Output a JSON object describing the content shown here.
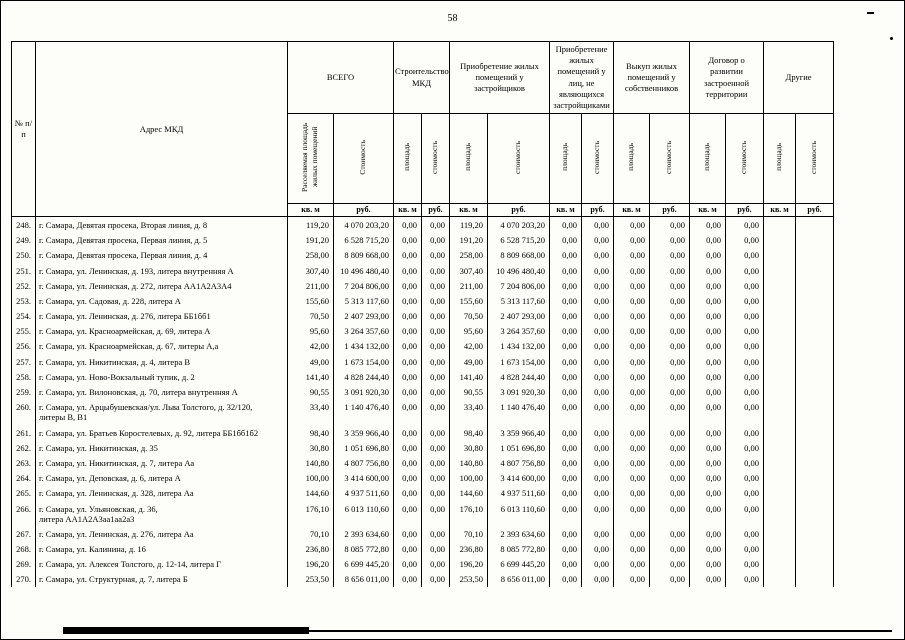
{
  "page": {
    "number": "58"
  },
  "table": {
    "headers": {
      "num": "№ п/п",
      "address": "Адрес МКД",
      "groups": [
        {
          "label": "ВСЕГО",
          "sub": [
            "Расселяемая площадь жилых помещений",
            "Стоимость"
          ]
        },
        {
          "label": "Строительство МКД",
          "sub": [
            "площадь",
            "стоимость"
          ]
        },
        {
          "label": "Приобретение жилых помещений у застройщиков",
          "sub": [
            "площадь",
            "стоимость"
          ]
        },
        {
          "label": "Приобретение жилых помещений у лиц, не являющихся застройщиками",
          "sub": [
            "площадь",
            "стоимость"
          ]
        },
        {
          "label": "Выкуп жилых помещений у собственников",
          "sub": [
            "площадь",
            "стоимость"
          ]
        },
        {
          "label": "Договор о развитии застроенной территории",
          "sub": [
            "площадь",
            "стоимость"
          ]
        },
        {
          "label": "Другие",
          "sub": [
            "площадь",
            "стоимость"
          ]
        }
      ],
      "units": {
        "area": "кв. м",
        "cost": "руб."
      }
    },
    "rows": [
      {
        "num": "248.",
        "address": "г. Самара, Девятая просека, Вторая линия, д. 8",
        "values": [
          "119,20",
          "4 070 203,20",
          "0,00",
          "0,00",
          "119,20",
          "4 070 203,20",
          "0,00",
          "0,00",
          "0,00",
          "0,00",
          "0,00",
          "0,00",
          "",
          ""
        ]
      },
      {
        "num": "249.",
        "address": "г. Самара, Девятая просека, Первая линия, д. 5",
        "values": [
          "191,20",
          "6 528 715,20",
          "0,00",
          "0,00",
          "191,20",
          "6 528 715,20",
          "0,00",
          "0,00",
          "0,00",
          "0,00",
          "0,00",
          "0,00",
          "",
          ""
        ]
      },
      {
        "num": "250.",
        "address": "г. Самара, Девятая просека, Первая линия, д. 4",
        "values": [
          "258,00",
          "8 809 668,00",
          "0,00",
          "0,00",
          "258,00",
          "8 809 668,00",
          "0,00",
          "0,00",
          "0,00",
          "0,00",
          "0,00",
          "0,00",
          "",
          ""
        ]
      },
      {
        "num": "251.",
        "address": "г. Самара, ул. Ленинская, д. 193, литера внутренняя А",
        "values": [
          "307,40",
          "10 496 480,40",
          "0,00",
          "0,00",
          "307,40",
          "10 496 480,40",
          "0,00",
          "0,00",
          "0,00",
          "0,00",
          "0,00",
          "0,00",
          "",
          ""
        ]
      },
      {
        "num": "252.",
        "address": "г. Самара, ул. Ленинская, д. 272, литера АА1А2А3А4",
        "values": [
          "211,00",
          "7 204 806,00",
          "0,00",
          "0,00",
          "211,00",
          "7 204 806,00",
          "0,00",
          "0,00",
          "0,00",
          "0,00",
          "0,00",
          "0,00",
          "",
          ""
        ]
      },
      {
        "num": "253.",
        "address": "г. Самара, ул. Садовая, д. 228, литера А",
        "values": [
          "155,60",
          "5 313 117,60",
          "0,00",
          "0,00",
          "155,60",
          "5 313 117,60",
          "0,00",
          "0,00",
          "0,00",
          "0,00",
          "0,00",
          "0,00",
          "",
          ""
        ]
      },
      {
        "num": "254.",
        "address": "г. Самара, ул. Ленинская, д. 276, литера ББ1бб1",
        "values": [
          "70,50",
          "2 407 293,00",
          "0,00",
          "0,00",
          "70,50",
          "2 407 293,00",
          "0,00",
          "0,00",
          "0,00",
          "0,00",
          "0,00",
          "0,00",
          "",
          ""
        ]
      },
      {
        "num": "255.",
        "address": "г. Самара, ул. Красноармейская, д. 69, литера А",
        "values": [
          "95,60",
          "3 264 357,60",
          "0,00",
          "0,00",
          "95,60",
          "3 264 357,60",
          "0,00",
          "0,00",
          "0,00",
          "0,00",
          "0,00",
          "0,00",
          "",
          ""
        ]
      },
      {
        "num": "256.",
        "address": "г. Самара, ул. Красноармейская, д. 67, литеры А,а",
        "values": [
          "42,00",
          "1 434 132,00",
          "0,00",
          "0,00",
          "42,00",
          "1 434 132,00",
          "0,00",
          "0,00",
          "0,00",
          "0,00",
          "0,00",
          "0,00",
          "",
          ""
        ]
      },
      {
        "num": "257.",
        "address": "г. Самара, ул. Никитинская, д. 4, литера В",
        "values": [
          "49,00",
          "1 673 154,00",
          "0,00",
          "0,00",
          "49,00",
          "1 673 154,00",
          "0,00",
          "0,00",
          "0,00",
          "0,00",
          "0,00",
          "0,00",
          "",
          ""
        ]
      },
      {
        "num": "258.",
        "address": "г. Самара, ул. Ново-Вокзальный тупик, д. 2",
        "values": [
          "141,40",
          "4 828 244,40",
          "0,00",
          "0,00",
          "141,40",
          "4 828 244,40",
          "0,00",
          "0,00",
          "0,00",
          "0,00",
          "0,00",
          "0,00",
          "",
          ""
        ]
      },
      {
        "num": "259.",
        "address": "г. Самара, ул. Вилоновская, д. 70, литера внутренняя А",
        "values": [
          "90,55",
          "3 091 920,30",
          "0,00",
          "0,00",
          "90,55",
          "3 091 920,30",
          "0,00",
          "0,00",
          "0,00",
          "0,00",
          "0,00",
          "0,00",
          "",
          ""
        ]
      },
      {
        "num": "260.",
        "address": "г. Самара, ул. Арцыбушевская/ул. Льва Толстого, д. 32/120,\nлитеры В, В1",
        "values": [
          "33,40",
          "1 140 476,40",
          "0,00",
          "0,00",
          "33,40",
          "1 140 476,40",
          "0,00",
          "0,00",
          "0,00",
          "0,00",
          "0,00",
          "0,00",
          "",
          ""
        ]
      },
      {
        "num": "261.",
        "address": "г. Самара, ул. Братьев Коростелевых, д. 92, литера ББ1бб1б2",
        "values": [
          "98,40",
          "3 359 966,40",
          "0,00",
          "0,00",
          "98,40",
          "3 359 966,40",
          "0,00",
          "0,00",
          "0,00",
          "0,00",
          "0,00",
          "0,00",
          "",
          ""
        ]
      },
      {
        "num": "262.",
        "address": "г. Самара, ул. Никитинская, д. 35",
        "values": [
          "30,80",
          "1 051 696,80",
          "0,00",
          "0,00",
          "30,80",
          "1 051 696,80",
          "0,00",
          "0,00",
          "0,00",
          "0,00",
          "0,00",
          "0,00",
          "",
          ""
        ]
      },
      {
        "num": "263.",
        "address": "г. Самара, ул. Никитинская, д. 7, литера Аа",
        "values": [
          "140,80",
          "4 807 756,80",
          "0,00",
          "0,00",
          "140,80",
          "4 807 756,80",
          "0,00",
          "0,00",
          "0,00",
          "0,00",
          "0,00",
          "0,00",
          "",
          ""
        ]
      },
      {
        "num": "264.",
        "address": "г. Самара, ул. Деповская, д. 6, литера А",
        "values": [
          "100,00",
          "3 414 600,00",
          "0,00",
          "0,00",
          "100,00",
          "3 414 600,00",
          "0,00",
          "0,00",
          "0,00",
          "0,00",
          "0,00",
          "0,00",
          "",
          ""
        ]
      },
      {
        "num": "265.",
        "address": "г. Самара, ул. Ленинская, д. 328, литера Аа",
        "values": [
          "144,60",
          "4 937 511,60",
          "0,00",
          "0,00",
          "144,60",
          "4 937 511,60",
          "0,00",
          "0,00",
          "0,00",
          "0,00",
          "0,00",
          "0,00",
          "",
          ""
        ]
      },
      {
        "num": "266.",
        "address": "г. Самара, ул. Ульяновская, д. 36,\nлитера АА1А2А3аа1аа2а3",
        "values": [
          "176,10",
          "6 013 110,60",
          "0,00",
          "0,00",
          "176,10",
          "6 013 110,60",
          "0,00",
          "0,00",
          "0,00",
          "0,00",
          "0,00",
          "0,00",
          "",
          ""
        ]
      },
      {
        "num": "267.",
        "address": "г. Самара, ул. Ленинская, д. 276, литера Аа",
        "values": [
          "70,10",
          "2 393 634,60",
          "0,00",
          "0,00",
          "70,10",
          "2 393 634,60",
          "0,00",
          "0,00",
          "0,00",
          "0,00",
          "0,00",
          "0,00",
          "",
          ""
        ]
      },
      {
        "num": "268.",
        "address": "г. Самара, ул. Калинина, д. 16",
        "values": [
          "236,80",
          "8 085 772,80",
          "0,00",
          "0,00",
          "236,80",
          "8 085 772,80",
          "0,00",
          "0,00",
          "0,00",
          "0,00",
          "0,00",
          "0,00",
          "",
          ""
        ]
      },
      {
        "num": "269.",
        "address": "г. Самара, ул. Алексея Толстого, д. 12-14, литера Г",
        "values": [
          "196,20",
          "6 699 445,20",
          "0,00",
          "0,00",
          "196,20",
          "6 699 445,20",
          "0,00",
          "0,00",
          "0,00",
          "0,00",
          "0,00",
          "0,00",
          "",
          ""
        ]
      },
      {
        "num": "270.",
        "address": "г. Самара, ул. Структурная, д. 7, литера Б",
        "values": [
          "253,50",
          "8 656 011,00",
          "0,00",
          "0,00",
          "253,50",
          "8 656 011,00",
          "0,00",
          "0,00",
          "0,00",
          "0,00",
          "0,00",
          "0,00",
          "",
          ""
        ]
      }
    ]
  }
}
